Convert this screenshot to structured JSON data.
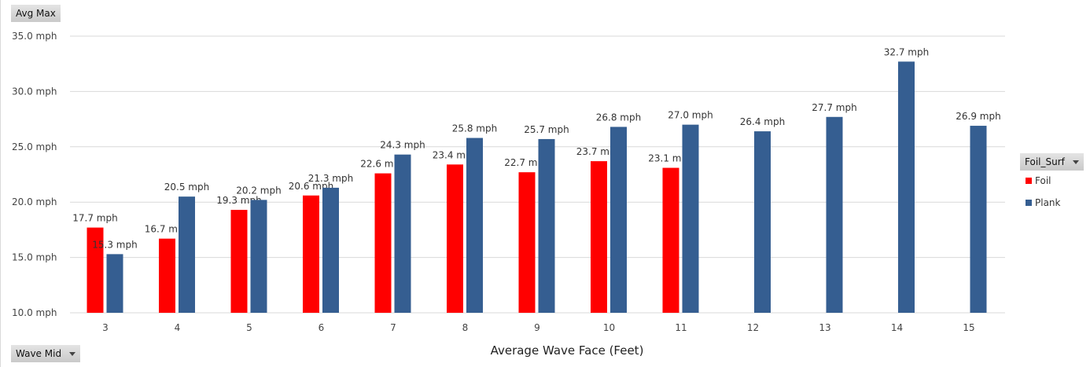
{
  "controls": {
    "value_field": "Avg Max",
    "axis_field": "Wave Mid",
    "legend_field": "Foil_Surf"
  },
  "chart_data": {
    "type": "bar",
    "xlabel": "Average Wave Face (Feet)",
    "ylabel": "",
    "ylim": [
      10,
      35
    ],
    "yticks": [
      "10.0 mph",
      "15.0 mph",
      "20.0 mph",
      "25.0 mph",
      "30.0 mph",
      "35.0 mph"
    ],
    "ytick_values": [
      10,
      15,
      20,
      25,
      30,
      35
    ],
    "grid": true,
    "legend_position": "right",
    "categories": [
      "3",
      "4",
      "5",
      "6",
      "7",
      "8",
      "9",
      "10",
      "11",
      "12",
      "13",
      "14",
      "15"
    ],
    "series": [
      {
        "name": "Foil",
        "color": "#ff0000",
        "values": [
          17.7,
          16.7,
          19.3,
          20.6,
          22.6,
          23.4,
          22.7,
          23.7,
          23.1,
          null,
          null,
          null,
          null
        ],
        "labels": [
          "17.7 mph",
          "16.7 mph",
          "19.3 mph",
          "20.6 mph",
          "22.6 mph",
          "23.4 mph",
          "22.7 mph",
          "23.7 mph",
          "23.1 mph",
          null,
          null,
          null,
          null
        ]
      },
      {
        "name": "Plank",
        "color": "#355e91",
        "values": [
          15.3,
          20.5,
          20.2,
          21.3,
          24.3,
          25.8,
          25.7,
          26.8,
          27.0,
          26.4,
          27.7,
          32.7,
          26.9
        ],
        "labels": [
          "15.3 mph",
          "20.5 mph",
          "20.2 mph",
          "21.3 mph",
          "24.3 mph",
          "25.8 mph",
          "25.7 mph",
          "26.8 mph",
          "27.0 mph",
          "26.4 mph",
          "27.7 mph",
          "32.7 mph",
          "26.9 mph"
        ]
      }
    ]
  }
}
